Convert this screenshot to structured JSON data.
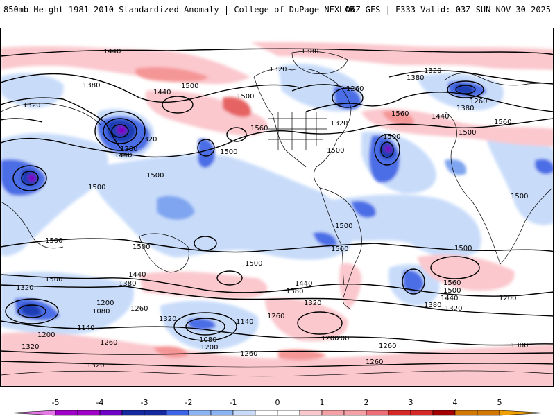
{
  "header": {
    "title_left": "850mb Height 1981-2010 Standardized Anomaly | College of DuPage NEXLAB",
    "title_right": "06Z GFS | F333 Valid: 03Z SUN NOV 30 2025"
  },
  "map": {
    "contour_labels": [
      "1440",
      "1380",
      "1320",
      "1380",
      "1320",
      "1380",
      "1320",
      "1500",
      "1440",
      "1500",
      "1560",
      "1320",
      "1380",
      "1260",
      "1320",
      "1560",
      "1440",
      "1380",
      "1260",
      "1500",
      "1560",
      "1500",
      "1500",
      "1500",
      "1440",
      "1500",
      "1500",
      "1500",
      "1500",
      "1500",
      "1500",
      "1500",
      "1500",
      "1500",
      "1440",
      "1380",
      "1500",
      "1440",
      "1380",
      "1320",
      "1560",
      "1500",
      "1440",
      "1380",
      "1320",
      "1200",
      "1320",
      "1200",
      "1080",
      "1260",
      "1140",
      "1200",
      "1320",
      "1260",
      "1200",
      "1140",
      "1080",
      "1200",
      "1260",
      "1260",
      "1200",
      "1260",
      "1320",
      "1320",
      "1260",
      "1380"
    ],
    "anomaly_colors": {
      "strong_negative": "#7b00c8",
      "deep_negative": "#1e3cb4",
      "negative": "#4b6ee6",
      "moderate_negative": "#7fa5f0",
      "light_negative": "#c8dcfa",
      "light_positive": "#fac8cd",
      "positive": "#f59696",
      "moderate_positive": "#e66464"
    }
  },
  "colorbar": {
    "ticks": [
      "-5",
      "-4",
      "-3",
      "-2",
      "-1",
      "0",
      "1",
      "2",
      "3",
      "4",
      "5"
    ],
    "colors": [
      "#e678e6",
      "#a000c8",
      "#6e00c8",
      "#1428a0",
      "#3c64e6",
      "#8cb4f5",
      "#c8dcfa",
      "#ffffff",
      "#fac8cd",
      "#f5a0a5",
      "#eb6e78",
      "#d72828",
      "#a50000",
      "#d27800",
      "#f0a000"
    ]
  }
}
